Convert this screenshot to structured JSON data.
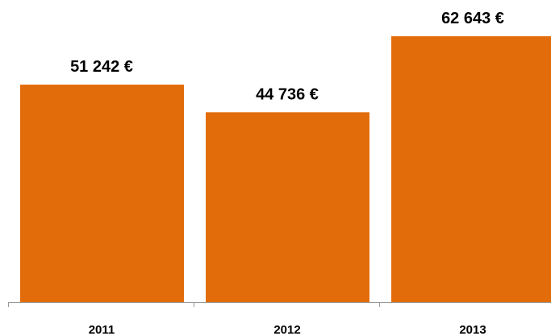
{
  "chart_data": {
    "type": "bar",
    "categories": [
      "2011",
      "2012",
      "2013"
    ],
    "values": [
      51242,
      44736,
      62643
    ],
    "value_labels": [
      "51 242 €",
      "44 736 €",
      "62 643 €"
    ],
    "color": "#e36c0a"
  }
}
